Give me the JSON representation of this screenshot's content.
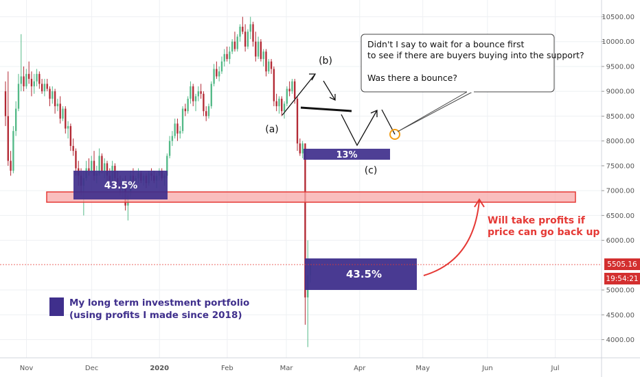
{
  "chart_data": {
    "type": "candlestick",
    "instrument_timeframe": "weekly-ish daily candles",
    "ylim": [
      3800,
      10700
    ],
    "y_ticks": [
      "10500.00",
      "10000.00",
      "9500.00",
      "9000.00",
      "8500.00",
      "8000.00",
      "7500.00",
      "7000.00",
      "6500.00",
      "6000.00",
      "5000.00",
      "4500.00",
      "4000.00"
    ],
    "x_ticks": [
      "Nov",
      "Dec",
      "2020",
      "Feb",
      "Mar",
      "Apr",
      "May",
      "Jun",
      "Jul"
    ],
    "last_price_label": "5505.16",
    "countdown_label": "19:54:21",
    "last_price": 5505.16,
    "candles": [
      [
        9000,
        9200,
        8300,
        8500
      ],
      [
        8500,
        9400,
        7500,
        7600
      ],
      [
        7600,
        7800,
        7300,
        7400
      ],
      [
        7400,
        8300,
        7350,
        8200
      ],
      [
        8200,
        8800,
        8100,
        8650
      ],
      [
        8650,
        9350,
        8600,
        9150
      ],
      [
        9150,
        10150,
        9000,
        9300
      ],
      [
        9300,
        9500,
        9000,
        9100
      ],
      [
        9100,
        9450,
        9050,
        9350
      ],
      [
        9350,
        9600,
        9150,
        9250
      ],
      [
        9250,
        9400,
        8900,
        9100
      ],
      [
        9100,
        9350,
        8950,
        9200
      ],
      [
        9200,
        9450,
        9100,
        9350
      ],
      [
        9350,
        9400,
        9050,
        9150
      ],
      [
        9150,
        9250,
        8950,
        9000
      ],
      [
        9000,
        9250,
        8900,
        9150
      ],
      [
        9150,
        9250,
        9000,
        9050
      ],
      [
        9050,
        9100,
        8700,
        8850
      ],
      [
        8850,
        9100,
        8750,
        9000
      ],
      [
        9000,
        9050,
        8550,
        8700
      ],
      [
        8700,
        8850,
        8600,
        8750
      ],
      [
        8750,
        8900,
        8350,
        8450
      ],
      [
        8450,
        8700,
        8400,
        8650
      ],
      [
        8650,
        8700,
        8150,
        8250
      ],
      [
        8250,
        8400,
        8050,
        8300
      ],
      [
        8300,
        8350,
        7800,
        7900
      ],
      [
        7900,
        8050,
        7700,
        7800
      ],
      [
        7800,
        7850,
        7300,
        7450
      ],
      [
        7450,
        7600,
        7100,
        7300
      ],
      [
        7300,
        7450,
        6900,
        7100
      ],
      [
        7100,
        7400,
        6500,
        7250
      ],
      [
        7250,
        7600,
        7200,
        7450
      ],
      [
        7450,
        7650,
        7300,
        7400
      ],
      [
        7400,
        7700,
        7350,
        7600
      ],
      [
        7600,
        7800,
        7200,
        7300
      ],
      [
        7300,
        7500,
        7150,
        7350
      ],
      [
        7350,
        7850,
        7300,
        7700
      ],
      [
        7700,
        7750,
        7350,
        7400
      ],
      [
        7400,
        7650,
        7250,
        7550
      ],
      [
        7550,
        7600,
        7200,
        7300
      ],
      [
        7300,
        7450,
        7100,
        7200
      ],
      [
        7200,
        7600,
        7150,
        7500
      ],
      [
        7500,
        7550,
        7150,
        7250
      ],
      [
        7250,
        7400,
        7050,
        7150
      ],
      [
        7150,
        7300,
        6900,
        7050
      ],
      [
        7050,
        7250,
        6850,
        7200
      ],
      [
        7200,
        7300,
        6600,
        6700
      ],
      [
        6700,
        7000,
        6400,
        6900
      ],
      [
        6900,
        7400,
        6850,
        7300
      ],
      [
        7300,
        7450,
        7100,
        7200
      ],
      [
        7200,
        7300,
        7050,
        7250
      ],
      [
        7250,
        7450,
        7150,
        7350
      ],
      [
        7350,
        7400,
        7150,
        7200
      ],
      [
        7200,
        7350,
        7100,
        7300
      ],
      [
        7300,
        7350,
        7050,
        7150
      ],
      [
        7150,
        7400,
        7100,
        7350
      ],
      [
        7350,
        7450,
        7200,
        7300
      ],
      [
        7300,
        7400,
        7150,
        7200
      ],
      [
        7200,
        7350,
        7050,
        7300
      ],
      [
        7300,
        7450,
        7200,
        7400
      ],
      [
        7400,
        7450,
        7200,
        7250
      ],
      [
        7250,
        7350,
        7100,
        7300
      ],
      [
        7300,
        7750,
        7250,
        7700
      ],
      [
        7700,
        8100,
        7650,
        8000
      ],
      [
        8000,
        8200,
        7900,
        8100
      ],
      [
        8100,
        8450,
        8050,
        8350
      ],
      [
        8350,
        8450,
        8000,
        8150
      ],
      [
        8150,
        8300,
        8050,
        8200
      ],
      [
        8200,
        8700,
        8150,
        8650
      ],
      [
        8650,
        8750,
        8500,
        8600
      ],
      [
        8600,
        8900,
        8550,
        8850
      ],
      [
        8850,
        9200,
        8750,
        9100
      ],
      [
        9100,
        9150,
        8700,
        8800
      ],
      [
        8800,
        8950,
        8600,
        8900
      ],
      [
        8900,
        9100,
        8800,
        9000
      ],
      [
        9000,
        9150,
        8850,
        8950
      ],
      [
        8950,
        9000,
        8500,
        8600
      ],
      [
        8600,
        8700,
        8400,
        8500
      ],
      [
        8500,
        8750,
        8450,
        8700
      ],
      [
        8700,
        9200,
        8650,
        9150
      ],
      [
        9150,
        9550,
        9100,
        9450
      ],
      [
        9450,
        9600,
        9250,
        9300
      ],
      [
        9300,
        9500,
        9200,
        9400
      ],
      [
        9400,
        9700,
        9350,
        9600
      ],
      [
        9600,
        9850,
        9500,
        9750
      ],
      [
        9750,
        9900,
        9600,
        9650
      ],
      [
        9650,
        9900,
        9550,
        9800
      ],
      [
        9800,
        10050,
        9750,
        10000
      ],
      [
        10000,
        10200,
        9800,
        9850
      ],
      [
        9850,
        10150,
        9800,
        10100
      ],
      [
        10100,
        10350,
        10000,
        10300
      ],
      [
        10300,
        10500,
        10150,
        10200
      ],
      [
        10200,
        10350,
        9800,
        9900
      ],
      [
        9900,
        10250,
        9850,
        10200
      ],
      [
        10200,
        10500,
        10050,
        10350
      ],
      [
        10350,
        10400,
        9900,
        10000
      ],
      [
        10000,
        10200,
        9600,
        9700
      ],
      [
        9700,
        10100,
        9650,
        10000
      ],
      [
        10000,
        10050,
        9600,
        9650
      ],
      [
        9650,
        9850,
        9500,
        9800
      ],
      [
        9800,
        9850,
        9300,
        9400
      ],
      [
        9400,
        9650,
        9350,
        9600
      ],
      [
        9600,
        9650,
        9350,
        9450
      ],
      [
        9450,
        9500,
        8700,
        8800
      ],
      [
        8800,
        8950,
        8600,
        8700
      ],
      [
        8700,
        8900,
        8550,
        8850
      ],
      [
        8850,
        8900,
        8500,
        8600
      ],
      [
        8600,
        8800,
        8450,
        8750
      ],
      [
        8750,
        9100,
        8700,
        9050
      ],
      [
        9050,
        9200,
        8900,
        9000
      ],
      [
        9000,
        9250,
        8950,
        9200
      ],
      [
        9200,
        9250,
        8750,
        8850
      ],
      [
        8850,
        8900,
        7800,
        7950
      ],
      [
        7950,
        8050,
        7700,
        7750
      ],
      [
        7750,
        8000,
        7650,
        7950
      ],
      [
        7950,
        7950,
        4300,
        4850
      ],
      [
        4850,
        6000,
        3850,
        5300
      ],
      [
        5300,
        5600,
        5150,
        5505
      ]
    ]
  },
  "annotations": {
    "box_left_pct": "43.5%",
    "box_mid_pct": "13%",
    "box_right_pct": "43.5%",
    "wave_a": "(a)",
    "wave_b": "(b)",
    "wave_c": "(c)",
    "callout_line1": "Didn't I say to wait for a bounce first",
    "callout_line2": "to see if there are buyers buying into the support?",
    "callout_line3": "Was there a bounce?",
    "red_note_line1": "Will take profits if",
    "red_note_line2": "price can go back up",
    "legend_line1": "My long term investment portfolio",
    "legend_line2": "(using profits I made since 2018)"
  },
  "colors": {
    "bull": "#26a69a",
    "bull_tv": "#53b987",
    "bear": "#b22833",
    "purple": "#3f2f8c",
    "red_zone_fill": "#f7a8a8",
    "red_zone_stroke": "#e53935",
    "red_note": "#e53935",
    "grid": "#eef0f3"
  }
}
